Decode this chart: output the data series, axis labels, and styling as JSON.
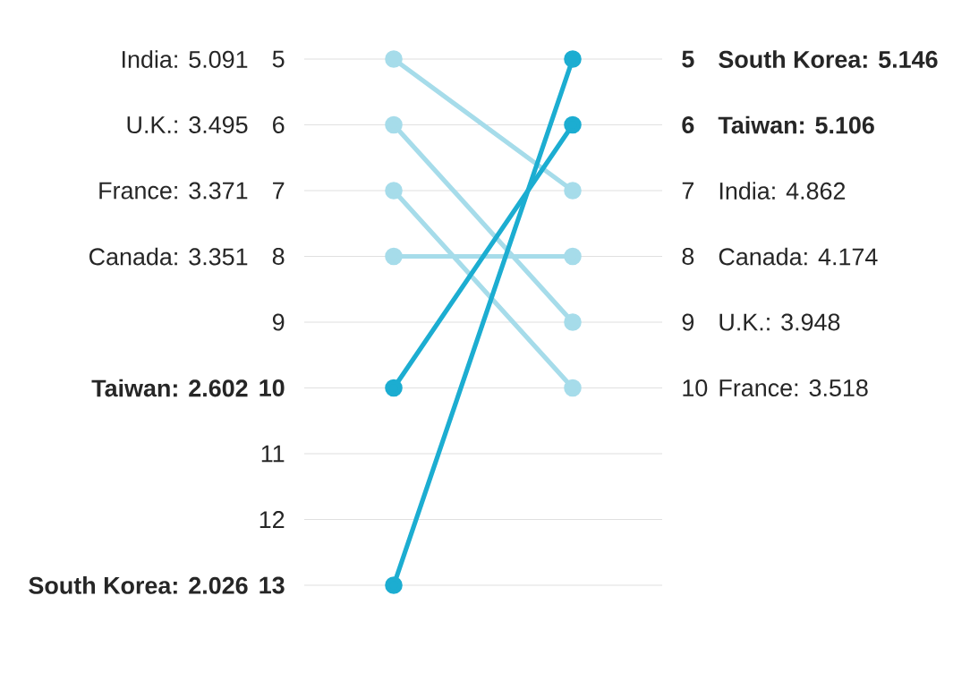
{
  "chart_data": {
    "type": "line",
    "categories": [
      null,
      null
    ],
    "ylim": [
      13,
      5
    ],
    "yticks": [
      5,
      6,
      7,
      8,
      9,
      10,
      11,
      12,
      13
    ],
    "y2lim": [
      10,
      5
    ],
    "y2ticks": [
      5,
      6,
      7,
      8,
      9,
      10
    ],
    "grid": "y",
    "marker": "circle",
    "line_style": "solid",
    "series": [
      {
        "color": "#a6dcea",
        "values": [
          5,
          7
        ]
      },
      {
        "color": "#a6dcea",
        "values": [
          6,
          9
        ]
      },
      {
        "color": "#a6dcea",
        "values": [
          7,
          10
        ]
      },
      {
        "color": "#a6dcea",
        "values": [
          8,
          8
        ]
      },
      {
        "color": "#1cadd1",
        "values": [
          10,
          6
        ]
      },
      {
        "color": "#1cadd1",
        "values": [
          13,
          5
        ]
      }
    ],
    "annotations": [
      "India: 5.091",
      "India: 4.862",
      "U.K.: 3.495",
      "U.K.: 3.948",
      "France: 3.371",
      "France: 3.518",
      "Canada: 3.351",
      "Canada: 4.174",
      "Taiwan: 2.602",
      "Taiwan: 5.106",
      "South Korea: 2.026",
      "South Korea: 5.146"
    ]
  }
}
